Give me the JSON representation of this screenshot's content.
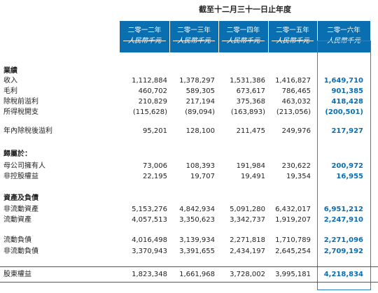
{
  "period_title": "截至十二月三十一日止年度",
  "columns": [
    {
      "year": "二零一二年",
      "unit": "人民幣千元"
    },
    {
      "year": "二零一三年",
      "unit": "人民幣千元"
    },
    {
      "year": "二零一四年",
      "unit": "人民幣千元"
    },
    {
      "year": "二零一五年",
      "unit": "人民幣千元"
    },
    {
      "year": "二零一六年",
      "unit": "人民幣千元"
    }
  ],
  "sections": {
    "results": "業績",
    "attributable": "歸屬於：",
    "assets": "資產及負債"
  },
  "rows": {
    "revenue": {
      "label": "收入",
      "values": [
        "1,112,884",
        "1,378,297",
        "1,531,386",
        "1,416,827",
        "1,649,710"
      ]
    },
    "gross_profit": {
      "label": "毛利",
      "values": [
        "460,702",
        "589,305",
        "673,617",
        "786,465",
        "901,385"
      ]
    },
    "profit_before_tax": {
      "label": "除稅前溢利",
      "values": [
        "210,829",
        "217,194",
        "375,368",
        "463,032",
        "418,428"
      ]
    },
    "income_tax": {
      "label": "所得稅開支",
      "values": [
        "(115,628)",
        "(89,094)",
        "(163,893)",
        "(213,056)",
        "(200,501)"
      ]
    },
    "profit_for_year": {
      "label": "年內除稅後溢利",
      "values": [
        "95,201",
        "128,100",
        "211,475",
        "249,976",
        "217,927"
      ]
    },
    "owners": {
      "label": "母公司擁有人",
      "values": [
        "73,006",
        "108,393",
        "191,984",
        "230,622",
        "200,972"
      ]
    },
    "nci": {
      "label": "非控股權益",
      "values": [
        "22,195",
        "19,707",
        "19,491",
        "19,354",
        "16,955"
      ]
    },
    "noncurrent_assets": {
      "label": "非流動資產",
      "values": [
        "5,153,276",
        "4,842,934",
        "5,091,280",
        "6,432,017",
        "6,951,212"
      ]
    },
    "current_assets": {
      "label": "流動資產",
      "values": [
        "4,057,513",
        "3,350,623",
        "3,342,737",
        "1,919,207",
        "2,247,910"
      ]
    },
    "current_liab": {
      "label": "流動負債",
      "values": [
        "4,016,498",
        "3,139,934",
        "2,271,818",
        "1,710,789",
        "2,271,096"
      ]
    },
    "noncurrent_liab": {
      "label": "非流動負債",
      "values": [
        "3,370,943",
        "3,391,655",
        "2,434,197",
        "2,645,254",
        "2,709,192"
      ]
    },
    "equity": {
      "label": "股東權益",
      "values": [
        "1,823,348",
        "1,661,968",
        "3,728,002",
        "3,995,181",
        "4,218,834"
      ]
    }
  },
  "colors": {
    "header": "#0a6fb0",
    "highlight": "#0a6fb0"
  }
}
